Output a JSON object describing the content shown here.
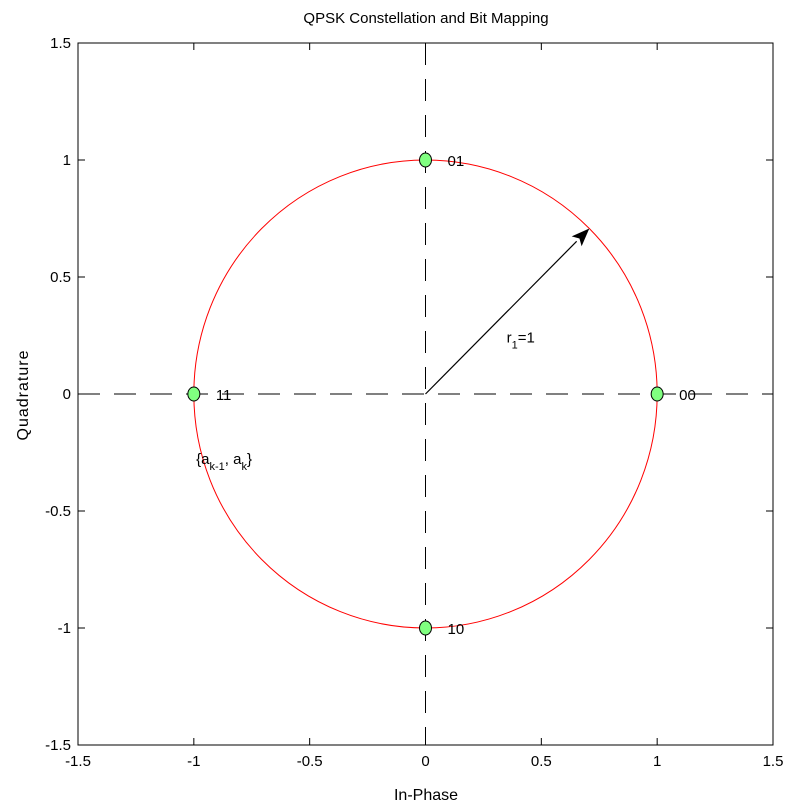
{
  "chart_data": {
    "type": "scatter",
    "title": "QPSK Constellation and Bit Mapping",
    "xlabel": "In-Phase",
    "ylabel": "Quadrature",
    "xlim": [
      -1.5,
      1.5
    ],
    "ylim": [
      -1.5,
      1.5
    ],
    "xticks": [
      "-1.5",
      "-1",
      "-0.5",
      "0",
      "0.5",
      "1",
      "1.5"
    ],
    "yticks": [
      "-1.5",
      "-1",
      "-0.5",
      "0",
      "0.5",
      "1",
      "1.5"
    ],
    "grid": false,
    "points": [
      {
        "x": 1,
        "y": 0,
        "label": "00"
      },
      {
        "x": 0,
        "y": 1,
        "label": "01"
      },
      {
        "x": -1,
        "y": 0,
        "label": "11"
      },
      {
        "x": 0,
        "y": -1,
        "label": "10"
      }
    ],
    "circle": {
      "radius": 1,
      "color": "#ff0000"
    },
    "radius_vector": {
      "from": [
        0,
        0
      ],
      "to": [
        0.7071,
        0.7071
      ]
    },
    "radius_label": {
      "main": "r",
      "sub": "1",
      "rest": "=1",
      "x": 0.35,
      "y": 0.22
    },
    "mapping_label": {
      "prefix": "{a",
      "sub1": "k-1",
      "mid": ", a",
      "sub2": "k",
      "suffix": "}",
      "x": -0.99,
      "y": -0.3
    },
    "colors": {
      "point_fill": "#80ff80",
      "point_edge": "#000000",
      "axes_dashed": "#000000"
    }
  }
}
